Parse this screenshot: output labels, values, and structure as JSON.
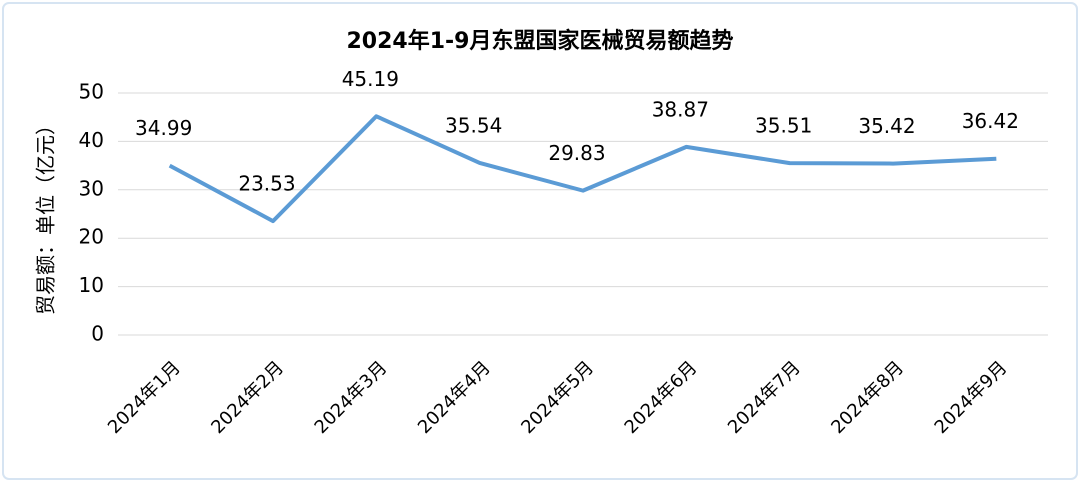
{
  "chart_data": {
    "type": "line",
    "title": "2024年1-9月东盟国家医械贸易额趋势",
    "y_label": "贸易额：单位（亿元）",
    "categories": [
      "2024年1月",
      "2024年2月",
      "2024年3月",
      "2024年4月",
      "2024年5月",
      "2024年6月",
      "2024年7月",
      "2024年8月",
      "2024年9月"
    ],
    "values": [
      34.99,
      23.53,
      45.19,
      35.54,
      29.83,
      38.87,
      35.51,
      35.42,
      36.42
    ],
    "color": "#5b9bd5",
    "ylim": [
      0,
      50
    ],
    "yticks": [
      0,
      10,
      20,
      30,
      40,
      50
    ],
    "grid": true
  }
}
